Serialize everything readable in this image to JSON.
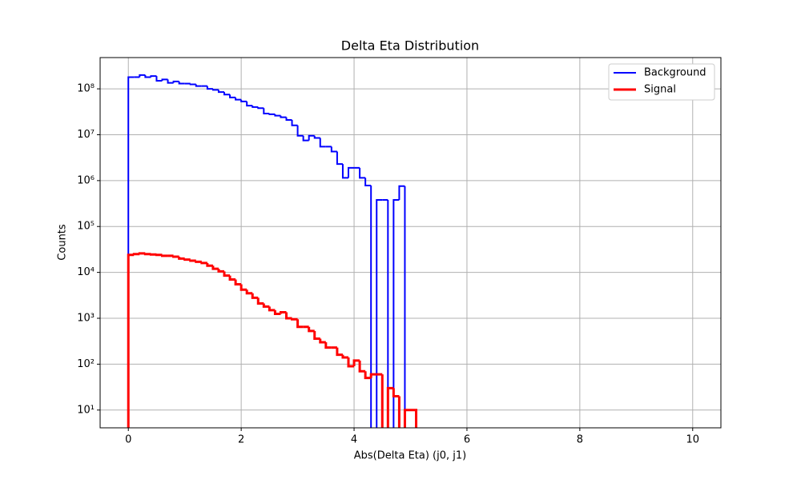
{
  "chart_data": {
    "type": "histogram",
    "title": "Delta Eta Distribution",
    "x_label": "Abs(Delta Eta) (j0, j1)",
    "y_label": "Counts",
    "bins": [
      0,
      0.1,
      0.2,
      0.3,
      0.4,
      0.5,
      0.6,
      0.7,
      0.8,
      0.9,
      1.0,
      1.1,
      1.2,
      1.3,
      1.4,
      1.5,
      1.6,
      1.7,
      1.8,
      1.9,
      2.0,
      2.1,
      2.2,
      2.3,
      2.4,
      2.5,
      2.6,
      2.7,
      2.8,
      2.9,
      3.0,
      3.1,
      3.2,
      3.3,
      3.4,
      3.5,
      3.6,
      3.7,
      3.8,
      3.9,
      4.0,
      4.1,
      4.2,
      4.3,
      4.4,
      4.5,
      4.6,
      4.7,
      4.8,
      4.9,
      5.0,
      5.1
    ],
    "series": [
      {
        "name": "Background",
        "color": "#0000ff",
        "line_width": 2,
        "values": [
          180000000,
          180000000,
          200000000,
          180000000,
          190000000,
          150000000,
          160000000,
          135000000,
          145000000,
          130000000,
          130000000,
          125000000,
          115000000,
          115000000,
          100000000,
          95000000,
          85000000,
          75000000,
          65000000,
          58000000,
          53000000,
          43000000,
          40000000,
          38000000,
          29000000,
          28000000,
          26000000,
          24000000,
          21000000,
          16000000,
          9500000,
          7500000,
          9500000,
          8500000,
          5500000,
          5500000,
          4300000,
          2300000,
          1150000,
          1900000,
          1900000,
          1150000,
          780000,
          0,
          380000,
          380000,
          0,
          380000,
          760000,
          0,
          0
        ]
      },
      {
        "name": "Signal",
        "color": "#ff0000",
        "line_width": 3,
        "values": [
          24000,
          25000,
          26000,
          25000,
          24500,
          24000,
          23000,
          23000,
          22000,
          20000,
          19000,
          18000,
          17000,
          16000,
          14000,
          12000,
          10500,
          8500,
          7000,
          5500,
          4200,
          3500,
          2800,
          2100,
          1800,
          1500,
          1250,
          1350,
          1000,
          950,
          650,
          650,
          530,
          360,
          300,
          230,
          230,
          160,
          140,
          90,
          120,
          70,
          50,
          60,
          60,
          0,
          30,
          20,
          0,
          10,
          10
        ]
      }
    ],
    "xlim": [
      -0.5,
      10.5
    ],
    "xticks": [
      0,
      2,
      4,
      6,
      8,
      10
    ],
    "ylim": [
      4.1,
      480000000
    ],
    "yticks": [
      {
        "value": 10,
        "label": "10¹"
      },
      {
        "value": 100,
        "label": "10²"
      },
      {
        "value": 1000,
        "label": "10³"
      },
      {
        "value": 10000,
        "label": "10⁴"
      },
      {
        "value": 100000,
        "label": "10⁵"
      },
      {
        "value": 1000000,
        "label": "10⁶"
      },
      {
        "value": 10000000,
        "label": "10⁷"
      },
      {
        "value": 100000000,
        "label": "10⁸"
      }
    ],
    "log_y": true,
    "grid": true,
    "legend": "upper-right"
  }
}
